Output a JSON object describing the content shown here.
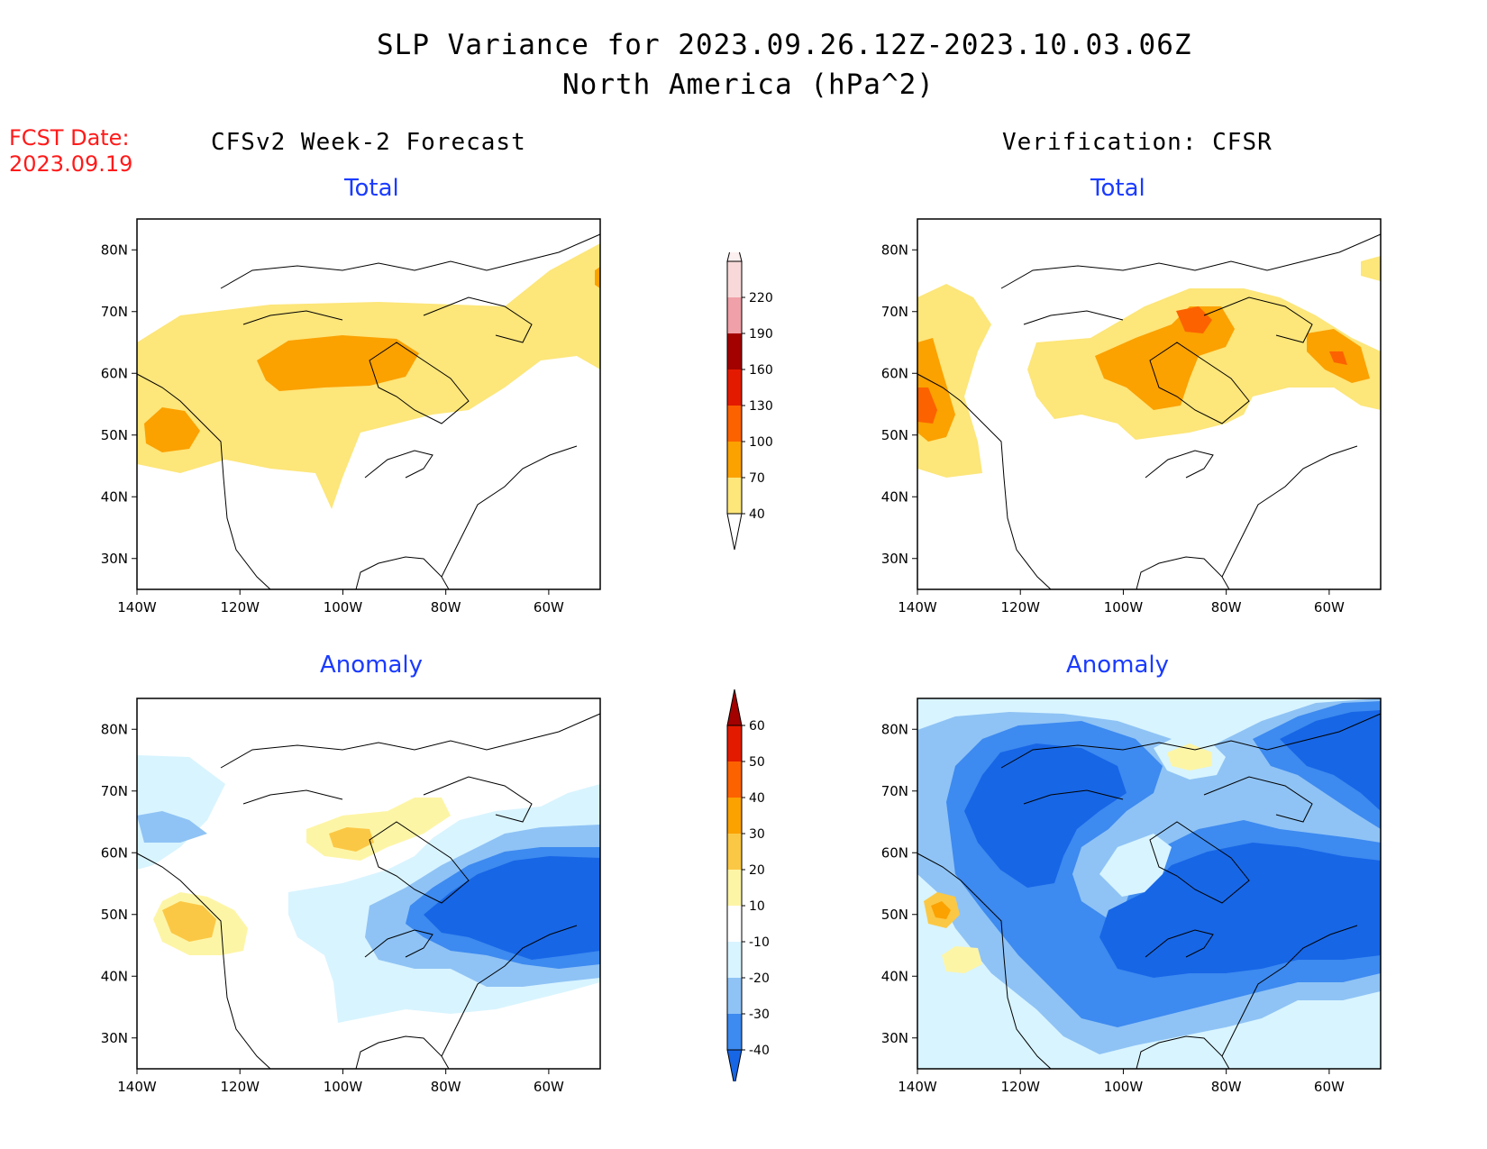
{
  "header": {
    "title_line1": "SLP Variance for 2023.09.26.12Z-2023.10.03.06Z",
    "title_line2": "North America (hPa^2)",
    "fcst_label": "FCST Date:",
    "fcst_date": "2023.09.19",
    "left_column": "CFSv2 Week-2 Forecast",
    "right_column": "Verification: CFSR"
  },
  "colors": {
    "total_scale": [
      "#fde67a",
      "#fba100",
      "#fc6200",
      "#e31a00",
      "#a30000",
      "#f0a0a8",
      "#f8d8d8",
      "#fdf0f0"
    ],
    "anomaly_scale": {
      "neg": [
        "#1766e6",
        "#3d8af0",
        "#8fc3f5",
        "#d8f4ff"
      ],
      "pos": [
        "#fdf5a6",
        "#fbc845",
        "#fba100",
        "#fc6200",
        "#e31a00",
        "#a30000"
      ]
    }
  },
  "chart_data": [
    {
      "type": "heatmap",
      "panel": "forecast-total",
      "title": "Total",
      "xlabel": "",
      "ylabel": "",
      "xlim": [
        -140,
        -50
      ],
      "ylim": [
        25,
        85
      ],
      "x_ticks": [
        "140W",
        "120W",
        "100W",
        "80W",
        "60W"
      ],
      "y_ticks": [
        "30N",
        "40N",
        "50N",
        "60N",
        "70N",
        "80N"
      ],
      "contour_levels": [
        40,
        70,
        100,
        130,
        160,
        190,
        220
      ],
      "features": [
        {
          "level": 40,
          "region": "broad band 38N-72N from 140W to 70W, extending NE to Greenland"
        },
        {
          "level": 70,
          "region": "central Canada ~56-63N, 115W-88W"
        },
        {
          "level": 70,
          "region": "Gulf of Alaska ~47-53N, 140W-130W"
        }
      ]
    },
    {
      "type": "heatmap",
      "panel": "verification-total",
      "title": "Total",
      "xlabel": "",
      "ylabel": "",
      "xlim": [
        -140,
        -50
      ],
      "ylim": [
        25,
        85
      ],
      "x_ticks": [
        "140W",
        "120W",
        "100W",
        "80W",
        "60W"
      ],
      "y_ticks": [
        "30N",
        "40N",
        "50N",
        "60N",
        "70N",
        "80N"
      ],
      "contour_levels": [
        40,
        70,
        100,
        130,
        160,
        190,
        220
      ],
      "features": [
        {
          "level": 40,
          "region": "Pacific coast 45N-75N, 140W-127W"
        },
        {
          "level": 40,
          "region": "central/eastern Canada 48N-72N, 112W-50W"
        },
        {
          "level": 70,
          "region": "Hudson Bay ~52-68N, 100W-78W"
        },
        {
          "level": 70,
          "region": "Labrador Sea ~58-64N, 68W-52W"
        },
        {
          "level": 70,
          "region": "Gulf of Alaska ~47-62N, 140W-133W"
        },
        {
          "level": 100,
          "region": "Labrador Sea ~62N, 60W"
        }
      ]
    },
    {
      "type": "heatmap",
      "panel": "forecast-anomaly",
      "title": "Anomaly",
      "xlabel": "",
      "ylabel": "",
      "xlim": [
        -140,
        -50
      ],
      "ylim": [
        25,
        85
      ],
      "x_ticks": [
        "140W",
        "120W",
        "100W",
        "80W",
        "60W"
      ],
      "y_ticks": [
        "30N",
        "40N",
        "50N",
        "60N",
        "70N",
        "80N"
      ],
      "contour_levels": [
        -40,
        -30,
        -20,
        -10,
        10,
        20,
        30,
        40,
        50,
        60
      ],
      "features": [
        {
          "level": -40,
          "region": "eastern Canada / Labrador 45N-60N, 85W-50W"
        },
        {
          "level": -10,
          "region": "eastern North America 35N-60N, 105W-50W"
        },
        {
          "level": 10,
          "region": "central Canada ~60-70N, 110W-85W"
        },
        {
          "level": 20,
          "region": "Pacific NW ~46-52N, 135W-125W"
        }
      ]
    },
    {
      "type": "heatmap",
      "panel": "verification-anomaly",
      "title": "Anomaly",
      "xlabel": "",
      "ylabel": "",
      "xlim": [
        -140,
        -50
      ],
      "ylim": [
        25,
        85
      ],
      "x_ticks": [
        "140W",
        "120W",
        "100W",
        "80W",
        "60W"
      ],
      "y_ticks": [
        "30N",
        "40N",
        "50N",
        "60N",
        "70N",
        "80N"
      ],
      "contour_levels": [
        -40,
        -30,
        -20,
        -10,
        10,
        20,
        30,
        40,
        50,
        60
      ],
      "features": [
        {
          "level": -40,
          "region": "Arctic Canada 60N-80N, 135W-100W"
        },
        {
          "level": -40,
          "region": "eastern Canada 40N-65N, 100W-50W"
        },
        {
          "level": -10,
          "region": "most of Canada and NE US 32N-85N"
        },
        {
          "level": 10,
          "region": "Hudson Bay north ~70N, 85W"
        },
        {
          "level": 20,
          "region": "offshore Pacific ~50-53N, 137W-133W"
        }
      ]
    },
    {
      "type": "colorbar",
      "panel": "total-colorbar",
      "labels": [
        "40",
        "70",
        "100",
        "130",
        "160",
        "190",
        "220"
      ]
    },
    {
      "type": "colorbar",
      "panel": "anomaly-colorbar",
      "labels": [
        "-40",
        "-30",
        "-20",
        "-10",
        "10",
        "20",
        "30",
        "40",
        "50",
        "60"
      ]
    }
  ]
}
